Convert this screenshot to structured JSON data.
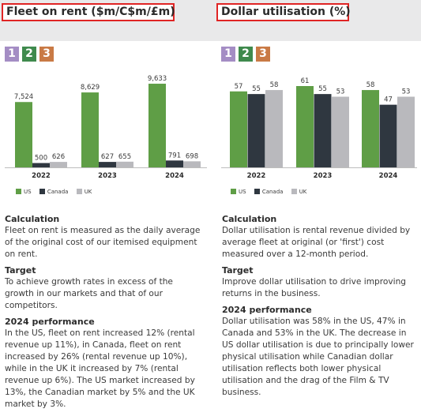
{
  "colors": {
    "us": "#5f9e46",
    "canada": "#2f3740",
    "uk": "#b9b9bd",
    "badge1": "#a48dc4",
    "badge2": "#3f8a4d",
    "badge3": "#c97a45",
    "highlight": "#e02424"
  },
  "badges": [
    "1",
    "2",
    "3"
  ],
  "legend": {
    "us": "US",
    "canada": "Canada",
    "uk": "UK"
  },
  "left": {
    "title": "Fleet on rent ($m/C$m/£m)",
    "chart_data": {
      "type": "bar",
      "title": "Fleet on rent ($m/C$m/£m)",
      "categories": [
        "2022",
        "2023",
        "2024"
      ],
      "series": [
        {
          "name": "US",
          "values": [
            7524,
            8629,
            9633
          ],
          "labels": [
            "7,524",
            "8,629",
            "9,633"
          ]
        },
        {
          "name": "Canada",
          "values": [
            500,
            627,
            791
          ],
          "labels": [
            "500",
            "627",
            "791"
          ]
        },
        {
          "name": "UK",
          "values": [
            626,
            655,
            698
          ],
          "labels": [
            "626",
            "655",
            "698"
          ]
        }
      ],
      "ylim": [
        0,
        10000
      ],
      "grid": false,
      "legend": "bottom-left"
    },
    "calc_heading": "Calculation",
    "calc_text": "Fleet on rent is measured as the daily average of the original cost of our itemised equipment on rent.",
    "target_heading": "Target",
    "target_text": "To achieve growth rates in excess of the growth in our markets and that of our competitors.",
    "perf_heading": "2024 performance",
    "perf_text": "In the US, fleet on rent increased 12% (rental revenue up 11%), in Canada, fleet on rent increased by 26% (rental revenue up 10%), while in the UK it increased by 7% (rental revenue up 6%). The US market increased by 13%, the Canadian market by 5% and the UK market by 3%."
  },
  "right": {
    "title": "Dollar utilisation (%)",
    "chart_data": {
      "type": "bar",
      "title": "Dollar utilisation (%)",
      "categories": [
        "2022",
        "2023",
        "2024"
      ],
      "series": [
        {
          "name": "US",
          "values": [
            57,
            61,
            58
          ],
          "labels": [
            "57",
            "61",
            "58"
          ]
        },
        {
          "name": "Canada",
          "values": [
            55,
            55,
            47
          ],
          "labels": [
            "55",
            "55",
            "47"
          ]
        },
        {
          "name": "UK",
          "values": [
            58,
            53,
            53
          ],
          "labels": [
            "58",
            "53",
            "53"
          ]
        }
      ],
      "ylim": [
        0,
        61
      ],
      "grid": false,
      "legend": "bottom-left"
    },
    "calc_heading": "Calculation",
    "calc_text": "Dollar utilisation is rental revenue divided by average fleet at original (or 'first') cost measured over a 12-month period.",
    "target_heading": "Target",
    "target_text": "Improve dollar utilisation to drive improving returns in the business.",
    "perf_heading": "2024 performance",
    "perf_text": "Dollar utilisation was 58% in the US, 47% in Canada and 53% in the UK. The decrease in US dollar utilisation is due to principally lower physical utilisation while Canadian dollar utilisation reflects both lower physical utilisation and the drag of the Film & TV business."
  }
}
